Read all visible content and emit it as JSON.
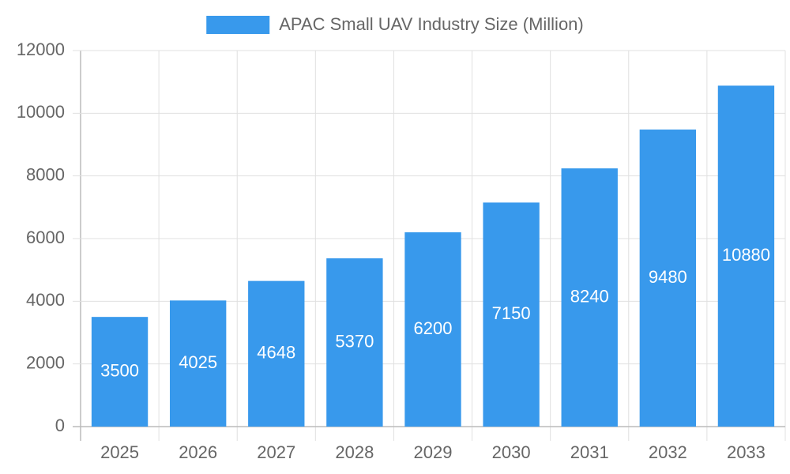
{
  "chart_data": {
    "type": "bar",
    "categories": [
      "2025",
      "2026",
      "2027",
      "2028",
      "2029",
      "2030",
      "2031",
      "2032",
      "2033"
    ],
    "series": [
      {
        "name": "APAC Small UAV Industry Size (Million)",
        "color": "#3899ec",
        "values": [
          3500,
          4025,
          4648,
          5370,
          6200,
          7150,
          8240,
          9480,
          10880
        ]
      }
    ],
    "ylim": [
      0,
      12000
    ],
    "yticks": [
      0,
      2000,
      4000,
      6000,
      8000,
      10000,
      12000
    ],
    "grid": true,
    "legend": "top"
  }
}
